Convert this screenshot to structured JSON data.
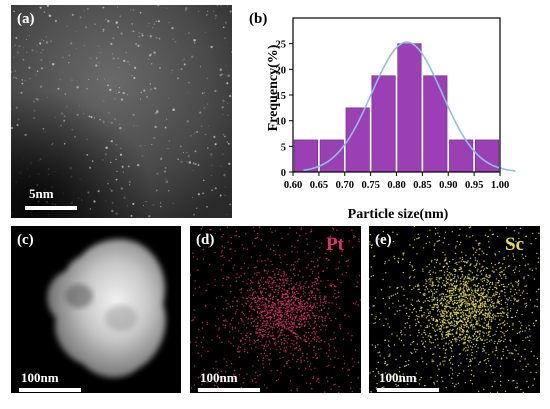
{
  "panels": {
    "a": {
      "label": "(a)",
      "scale": "5nm"
    },
    "b": {
      "label": "(b)"
    },
    "c": {
      "label": "(c)",
      "scale": "100nm"
    },
    "d": {
      "label": "(d)",
      "scale": "100nm",
      "element": "Pt",
      "color": "#e0306a"
    },
    "e": {
      "label": "(e)",
      "scale": "100nm",
      "element": "Sc",
      "color": "#e6e04a"
    }
  },
  "chart_data": {
    "type": "bar",
    "xlabel": "Particle size(nm)",
    "ylabel": "Frequency(%)",
    "x_ticks": [
      "0.60",
      "0.65",
      "0.70",
      "0.75",
      "0.80",
      "0.85",
      "0.90",
      "0.95",
      "1.00"
    ],
    "y_ticks": [
      "0",
      "5",
      "10",
      "15",
      "20",
      "25"
    ],
    "xlim": [
      0.6,
      1.0
    ],
    "ylim": [
      0,
      30
    ],
    "bin_width": 0.05,
    "bars": [
      {
        "x": 0.625,
        "y": 6.25
      },
      {
        "x": 0.675,
        "y": 6.25
      },
      {
        "x": 0.725,
        "y": 12.5
      },
      {
        "x": 0.775,
        "y": 18.75
      },
      {
        "x": 0.825,
        "y": 25.0
      },
      {
        "x": 0.875,
        "y": 18.75
      },
      {
        "x": 0.925,
        "y": 6.25
      },
      {
        "x": 0.975,
        "y": 6.25
      }
    ],
    "fit": {
      "type": "gaussian",
      "center": 0.82,
      "sigma": 0.068,
      "peak": 25.3,
      "color": "#8fbfe8"
    },
    "bar_color": "#9b3fb5"
  }
}
